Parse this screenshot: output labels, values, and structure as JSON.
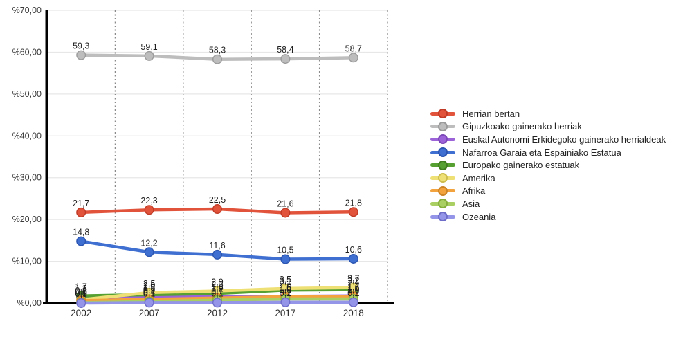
{
  "chart_data": {
    "type": "line",
    "title": "",
    "xlabel": "",
    "ylabel": "",
    "categories": [
      "2002",
      "2007",
      "2012",
      "2017",
      "2018"
    ],
    "y_ticks": [
      "%0,00",
      "%10,00",
      "%20,00",
      "%30,00",
      "%40,00",
      "%50,00",
      "%60,00",
      "%70,00"
    ],
    "ylim": [
      0,
      70
    ],
    "grid": {
      "horizontal_lines": true,
      "vertical_dotted_lines": true
    },
    "legend_position": "right",
    "value_decimal_separator": ",",
    "series": [
      {
        "name": "Herrian bertan",
        "color": "#e2533b",
        "edge": "#c03a25",
        "values": [
          21.7,
          22.3,
          22.5,
          21.6,
          21.8
        ],
        "labels": [
          "21,7",
          "22,3",
          "22,5",
          "21,6",
          "21,8"
        ]
      },
      {
        "name": "Gipuzkoako gainerako herriak",
        "color": "#bdbdbd",
        "edge": "#9b9b9b",
        "values": [
          59.3,
          59.1,
          58.3,
          58.4,
          58.7
        ],
        "labels": [
          "59,3",
          "59,1",
          "58,3",
          "58,4",
          "58,7"
        ]
      },
      {
        "name": "Euskal Autonomi Erkidegoko gainerako herrialdeak",
        "color": "#9c63d8",
        "edge": "#7d48b8",
        "values": [
          1.3,
          1.5,
          1.6,
          1.6,
          1.7
        ],
        "labels": [
          "1,3",
          "1,5",
          "1,6",
          "1,6",
          "1,7"
        ]
      },
      {
        "name": "Nafarroa Garaia eta Espainiako Estatua",
        "color": "#3f6fd0",
        "edge": "#2b55b0",
        "values": [
          14.8,
          12.2,
          11.6,
          10.5,
          10.6
        ],
        "labels": [
          "14,8",
          "12,2",
          "11,6",
          "10,5",
          "10,6"
        ]
      },
      {
        "name": "Europako gainerako estatuak",
        "color": "#56a032",
        "edge": "#417d20",
        "values": [
          1.7,
          2.0,
          2.3,
          3.1,
          3.2
        ],
        "labels": [
          "1,7",
          "2,0",
          "2,3",
          "3,1",
          "3,2"
        ]
      },
      {
        "name": "Amerika",
        "color": "#efe075",
        "edge": "#cdbd4e",
        "values": [
          0.8,
          2.5,
          2.9,
          3.5,
          3.7
        ],
        "labels": [
          "0,8",
          "2,5",
          "2,9",
          "3,5",
          "3,7"
        ]
      },
      {
        "name": "Afrika",
        "color": "#f2a33d",
        "edge": "#cc8428",
        "values": [
          0.6,
          0.9,
          1.2,
          1.5,
          1.6
        ],
        "labels": [
          "0,6",
          "0,9",
          "1,2",
          "1,5",
          "1,6"
        ]
      },
      {
        "name": "Asia",
        "color": "#a9cf62",
        "edge": "#84ad3c",
        "values": [
          0.1,
          0.4,
          0.7,
          1.0,
          1.0
        ],
        "labels": [
          "0,1",
          "0,4",
          "0,7",
          "1,0",
          "1,0"
        ]
      },
      {
        "name": "Ozeania",
        "color": "#9494e8",
        "edge": "#6d6dc9",
        "values": [
          0.0,
          0.1,
          0.1,
          0.2,
          0.2
        ],
        "labels": [
          "0,0",
          "0,1",
          "0,1",
          "0,2",
          "0,2"
        ]
      }
    ]
  }
}
